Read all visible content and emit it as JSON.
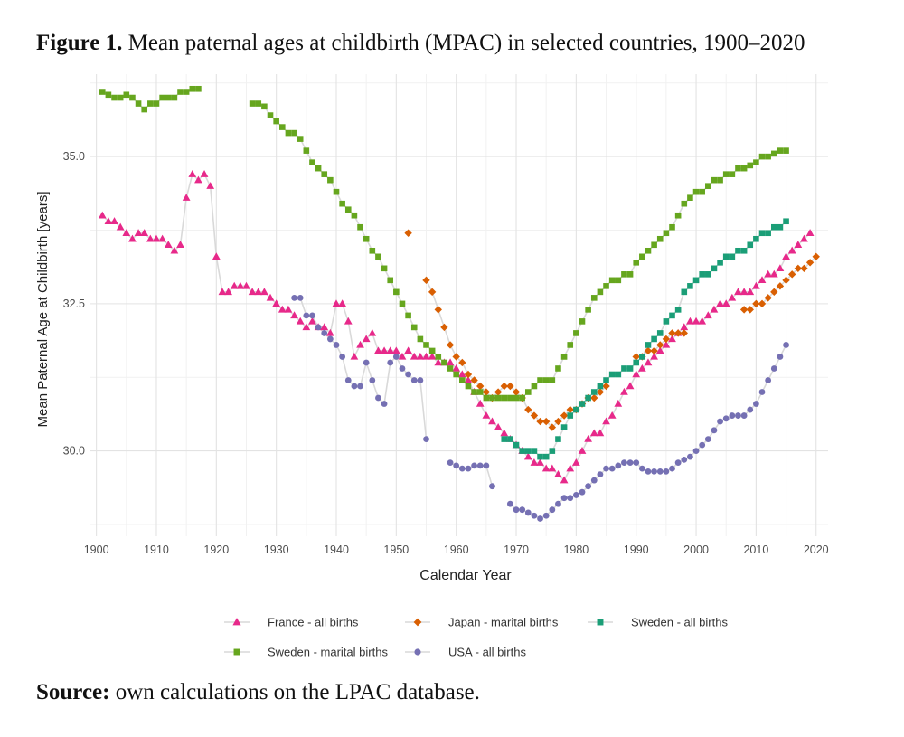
{
  "figure": {
    "label": "Figure 1.",
    "title": "Mean paternal ages at childbirth (MPAC) in selected countries, 1900–2020"
  },
  "source": {
    "label": "Source:",
    "text": "own calculations on the LPAC database."
  },
  "chart_data": {
    "type": "line",
    "xlabel": "Calendar Year",
    "ylabel": "Mean Paternal Age at Childbirth [years]",
    "xlim": [
      1899,
      2022
    ],
    "ylim": [
      28.55,
      36.4
    ],
    "xticks": [
      1900,
      1910,
      1920,
      1930,
      1940,
      1950,
      1960,
      1970,
      1980,
      1990,
      2000,
      2010,
      2020
    ],
    "yticks": [
      30.0,
      32.5,
      35.0
    ],
    "ytick_labels": [
      "30.0",
      "32.5",
      "35.0"
    ],
    "grid": true,
    "legend_position": "bottom",
    "series": [
      {
        "name": "France - all births",
        "color": "#e7298a",
        "marker": "triangle",
        "x": [
          1901,
          1902,
          1903,
          1904,
          1905,
          1906,
          1907,
          1908,
          1909,
          1910,
          1911,
          1912,
          1913,
          1914,
          1915,
          1916,
          1917,
          1918,
          1919,
          1920,
          1921,
          1922,
          1923,
          1924,
          1925,
          1926,
          1927,
          1928,
          1929,
          1930,
          1931,
          1932,
          1933,
          1934,
          1935,
          1936,
          1937,
          1938,
          1939,
          1940,
          1941,
          1942,
          1943,
          1944,
          1945,
          1946,
          1947,
          1948,
          1949,
          1950,
          1951,
          1952,
          1953,
          1954,
          1955,
          1956,
          1957,
          1958,
          1959,
          1960,
          1961,
          1962,
          1963,
          1964,
          1965,
          1966,
          1967,
          1968,
          1969,
          1970,
          1971,
          1972,
          1973,
          1974,
          1975,
          1976,
          1977,
          1978,
          1979,
          1980,
          1981,
          1982,
          1983,
          1984,
          1985,
          1986,
          1987,
          1988,
          1989,
          1990,
          1991,
          1992,
          1993,
          1994,
          1995,
          1996,
          1997,
          1998,
          1999,
          2000,
          2001,
          2002,
          2003,
          2004,
          2005,
          2006,
          2007,
          2008,
          2009,
          2010,
          2011,
          2012,
          2013,
          2014,
          2015,
          2016,
          2017,
          2018,
          2019
        ],
        "y": [
          34.0,
          33.9,
          33.9,
          33.8,
          33.7,
          33.6,
          33.7,
          33.7,
          33.6,
          33.6,
          33.6,
          33.5,
          33.4,
          33.5,
          34.3,
          34.7,
          34.6,
          34.7,
          34.5,
          33.3,
          32.7,
          32.7,
          32.8,
          32.8,
          32.8,
          32.7,
          32.7,
          32.7,
          32.6,
          32.5,
          32.4,
          32.4,
          32.3,
          32.2,
          32.1,
          32.2,
          32.1,
          32.1,
          32.0,
          32.5,
          32.5,
          32.2,
          31.6,
          31.8,
          31.9,
          32.0,
          31.7,
          31.7,
          31.7,
          31.7,
          31.6,
          31.7,
          31.6,
          31.6,
          31.6,
          31.6,
          31.5,
          31.5,
          31.5,
          31.4,
          31.3,
          31.2,
          31.0,
          30.8,
          30.6,
          30.5,
          30.4,
          30.3,
          30.2,
          30.1,
          30.0,
          29.9,
          29.8,
          29.8,
          29.7,
          29.7,
          29.6,
          29.5,
          29.7,
          29.8,
          30.0,
          30.2,
          30.3,
          30.3,
          30.5,
          30.6,
          30.8,
          31.0,
          31.1,
          31.3,
          31.4,
          31.5,
          31.6,
          31.7,
          31.8,
          31.9,
          32.0,
          32.1,
          32.2,
          32.2,
          32.2,
          32.3,
          32.4,
          32.5,
          32.5,
          32.6,
          32.7,
          32.7,
          32.7,
          32.8,
          32.9,
          33.0,
          33.0,
          33.1,
          33.3,
          33.4,
          33.5,
          33.6,
          33.7
        ]
      },
      {
        "name": "Japan - marital births",
        "color": "#d95f02",
        "marker": "diamond",
        "x": [
          1952,
          1955,
          1956,
          1957,
          1958,
          1959,
          1960,
          1961,
          1962,
          1963,
          1964,
          1965,
          1966,
          1967,
          1968,
          1969,
          1970,
          1971,
          1972,
          1973,
          1974,
          1975,
          1976,
          1977,
          1978,
          1979,
          1980,
          1981,
          1982,
          1983,
          1984,
          1985,
          1990,
          1991,
          1992,
          1993,
          1994,
          1995,
          1996,
          1997,
          1998,
          2008,
          2009,
          2010,
          2011,
          2012,
          2013,
          2014,
          2015,
          2016,
          2017,
          2018,
          2019,
          2020
        ],
        "y": [
          33.7,
          32.9,
          32.7,
          32.4,
          32.1,
          31.8,
          31.6,
          31.5,
          31.3,
          31.2,
          31.1,
          31.0,
          30.9,
          31.0,
          31.1,
          31.1,
          31.0,
          30.9,
          30.7,
          30.6,
          30.5,
          30.5,
          30.4,
          30.5,
          30.6,
          30.7,
          30.7,
          30.8,
          30.9,
          30.9,
          31.0,
          31.1,
          31.6,
          31.6,
          31.7,
          31.7,
          31.8,
          31.9,
          32.0,
          32.0,
          32.0,
          32.4,
          32.4,
          32.5,
          32.5,
          32.6,
          32.7,
          32.8,
          32.9,
          33.0,
          33.1,
          33.1,
          33.2,
          33.3
        ]
      },
      {
        "name": "Sweden - all births",
        "color": "#1b9e77",
        "marker": "square",
        "x": [
          1968,
          1969,
          1970,
          1971,
          1972,
          1973,
          1974,
          1975,
          1976,
          1977,
          1978,
          1979,
          1980,
          1981,
          1982,
          1983,
          1984,
          1985,
          1986,
          1987,
          1988,
          1989,
          1990,
          1991,
          1992,
          1993,
          1994,
          1995,
          1996,
          1997,
          1998,
          1999,
          2000,
          2001,
          2002,
          2003,
          2004,
          2005,
          2006,
          2007,
          2008,
          2009,
          2010,
          2011,
          2012,
          2013,
          2014,
          2015
        ],
        "y": [
          30.2,
          30.2,
          30.1,
          30.0,
          30.0,
          30.0,
          29.9,
          29.9,
          30.0,
          30.2,
          30.4,
          30.6,
          30.7,
          30.8,
          30.9,
          31.0,
          31.1,
          31.2,
          31.3,
          31.3,
          31.4,
          31.4,
          31.5,
          31.6,
          31.8,
          31.9,
          32.0,
          32.2,
          32.3,
          32.4,
          32.7,
          32.8,
          32.9,
          33.0,
          33.0,
          33.1,
          33.2,
          33.3,
          33.3,
          33.4,
          33.4,
          33.5,
          33.6,
          33.7,
          33.7,
          33.8,
          33.8,
          33.9
        ]
      },
      {
        "name": "Sweden - marital births",
        "color": "#66a61e",
        "marker": "square",
        "x": [
          1901,
          1902,
          1903,
          1904,
          1905,
          1906,
          1907,
          1908,
          1909,
          1910,
          1911,
          1912,
          1913,
          1914,
          1915,
          1916,
          1917,
          1926,
          1927,
          1928,
          1929,
          1930,
          1931,
          1932,
          1933,
          1934,
          1935,
          1936,
          1937,
          1938,
          1939,
          1940,
          1941,
          1942,
          1943,
          1944,
          1945,
          1946,
          1947,
          1948,
          1949,
          1950,
          1951,
          1952,
          1953,
          1954,
          1955,
          1956,
          1957,
          1958,
          1959,
          1960,
          1961,
          1962,
          1963,
          1964,
          1965,
          1966,
          1967,
          1968,
          1969,
          1970,
          1971,
          1972,
          1973,
          1974,
          1975,
          1976,
          1977,
          1978,
          1979,
          1980,
          1981,
          1982,
          1983,
          1984,
          1985,
          1986,
          1987,
          1988,
          1989,
          1990,
          1991,
          1992,
          1993,
          1994,
          1995,
          1996,
          1997,
          1998,
          1999,
          2000,
          2001,
          2002,
          2003,
          2004,
          2005,
          2006,
          2007,
          2008,
          2009,
          2010,
          2011,
          2012,
          2013,
          2014,
          2015
        ],
        "y": [
          36.1,
          36.05,
          36.0,
          36.0,
          36.05,
          36.0,
          35.9,
          35.8,
          35.9,
          35.9,
          36.0,
          36.0,
          36.0,
          36.1,
          36.1,
          36.15,
          36.15,
          35.9,
          35.9,
          35.85,
          35.7,
          35.6,
          35.5,
          35.4,
          35.4,
          35.3,
          35.1,
          34.9,
          34.8,
          34.7,
          34.6,
          34.4,
          34.2,
          34.1,
          34.0,
          33.8,
          33.6,
          33.4,
          33.3,
          33.1,
          32.9,
          32.7,
          32.5,
          32.3,
          32.1,
          31.9,
          31.8,
          31.7,
          31.6,
          31.5,
          31.4,
          31.3,
          31.2,
          31.1,
          31.0,
          31.0,
          30.9,
          30.9,
          30.9,
          30.9,
          30.9,
          30.9,
          30.9,
          31.0,
          31.1,
          31.2,
          31.2,
          31.2,
          31.4,
          31.6,
          31.8,
          32.0,
          32.2,
          32.4,
          32.6,
          32.7,
          32.8,
          32.9,
          32.9,
          33.0,
          33.0,
          33.2,
          33.3,
          33.4,
          33.5,
          33.6,
          33.7,
          33.8,
          34.0,
          34.2,
          34.3,
          34.4,
          34.4,
          34.5,
          34.6,
          34.6,
          34.7,
          34.7,
          34.8,
          34.8,
          34.85,
          34.9,
          35.0,
          35.0,
          35.05,
          35.1,
          35.1
        ]
      },
      {
        "name": "USA - all births",
        "color": "#7570b3",
        "marker": "circle",
        "x": [
          1933,
          1934,
          1935,
          1936,
          1937,
          1938,
          1939,
          1940,
          1941,
          1942,
          1943,
          1944,
          1945,
          1946,
          1947,
          1948,
          1949,
          1950,
          1951,
          1952,
          1953,
          1954,
          1955,
          1959,
          1960,
          1961,
          1962,
          1963,
          1964,
          1965,
          1966,
          1969,
          1970,
          1971,
          1972,
          1973,
          1974,
          1975,
          1976,
          1977,
          1978,
          1979,
          1980,
          1981,
          1982,
          1983,
          1984,
          1985,
          1986,
          1987,
          1988,
          1989,
          1990,
          1991,
          1992,
          1993,
          1994,
          1995,
          1996,
          1997,
          1998,
          1999,
          2000,
          2001,
          2002,
          2003,
          2004,
          2005,
          2006,
          2007,
          2008,
          2009,
          2010,
          2011,
          2012,
          2013,
          2014,
          2015
        ],
        "y": [
          32.6,
          32.6,
          32.3,
          32.3,
          32.1,
          32.0,
          31.9,
          31.8,
          31.6,
          31.2,
          31.1,
          31.1,
          31.5,
          31.2,
          30.9,
          30.8,
          31.5,
          31.6,
          31.4,
          31.3,
          31.2,
          31.2,
          30.2,
          29.8,
          29.75,
          29.7,
          29.7,
          29.75,
          29.75,
          29.75,
          29.4,
          29.1,
          29.0,
          29.0,
          28.95,
          28.9,
          28.85,
          28.9,
          29.0,
          29.1,
          29.2,
          29.2,
          29.25,
          29.3,
          29.4,
          29.5,
          29.6,
          29.7,
          29.7,
          29.75,
          29.8,
          29.8,
          29.8,
          29.7,
          29.65,
          29.65,
          29.65,
          29.65,
          29.7,
          29.8,
          29.85,
          29.9,
          30.0,
          30.1,
          30.2,
          30.35,
          30.5,
          30.55,
          30.6,
          30.6,
          30.6,
          30.7,
          30.8,
          31.0,
          31.2,
          31.4,
          31.6,
          31.8
        ]
      }
    ]
  }
}
